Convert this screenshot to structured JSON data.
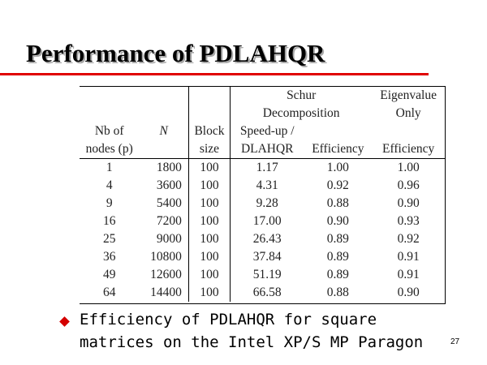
{
  "slide": {
    "title": "Performance of PDLAHQR",
    "page_number": "27",
    "colors": {
      "title_rule": "#e00000",
      "bullet": "#d40000"
    }
  },
  "table": {
    "group_headers": {
      "schur": [
        "Schur",
        "Decomposition"
      ],
      "eigen": [
        "Eigenvalue",
        "Only"
      ]
    },
    "headers": {
      "nodes": [
        "Nb  of",
        "nodes (p)"
      ],
      "n": "N",
      "block": [
        "Block",
        "size"
      ],
      "speedup": [
        "Speed-up /",
        "DLAHQR"
      ],
      "eff1": "Efficiency",
      "eff2": "Efficiency"
    },
    "rows": [
      [
        "1",
        "1800",
        "100",
        "1.17",
        "1.00",
        "1.00"
      ],
      [
        "4",
        "3600",
        "100",
        "4.31",
        "0.92",
        "0.96"
      ],
      [
        "9",
        "5400",
        "100",
        "9.28",
        "0.88",
        "0.90"
      ],
      [
        "16",
        "7200",
        "100",
        "17.00",
        "0.90",
        "0.93"
      ],
      [
        "25",
        "9000",
        "100",
        "26.43",
        "0.89",
        "0.92"
      ],
      [
        "36",
        "10800",
        "100",
        "37.84",
        "0.89",
        "0.91"
      ],
      [
        "49",
        "12600",
        "100",
        "51.19",
        "0.89",
        "0.91"
      ],
      [
        "64",
        "14400",
        "100",
        "66.58",
        "0.88",
        "0.90"
      ]
    ]
  },
  "caption": {
    "bullet_icon": "diamond-bullet-icon",
    "lines": [
      "Efficiency of PDLAHQR for square",
      "matrices on the Intel XP/S MP Paragon"
    ]
  }
}
